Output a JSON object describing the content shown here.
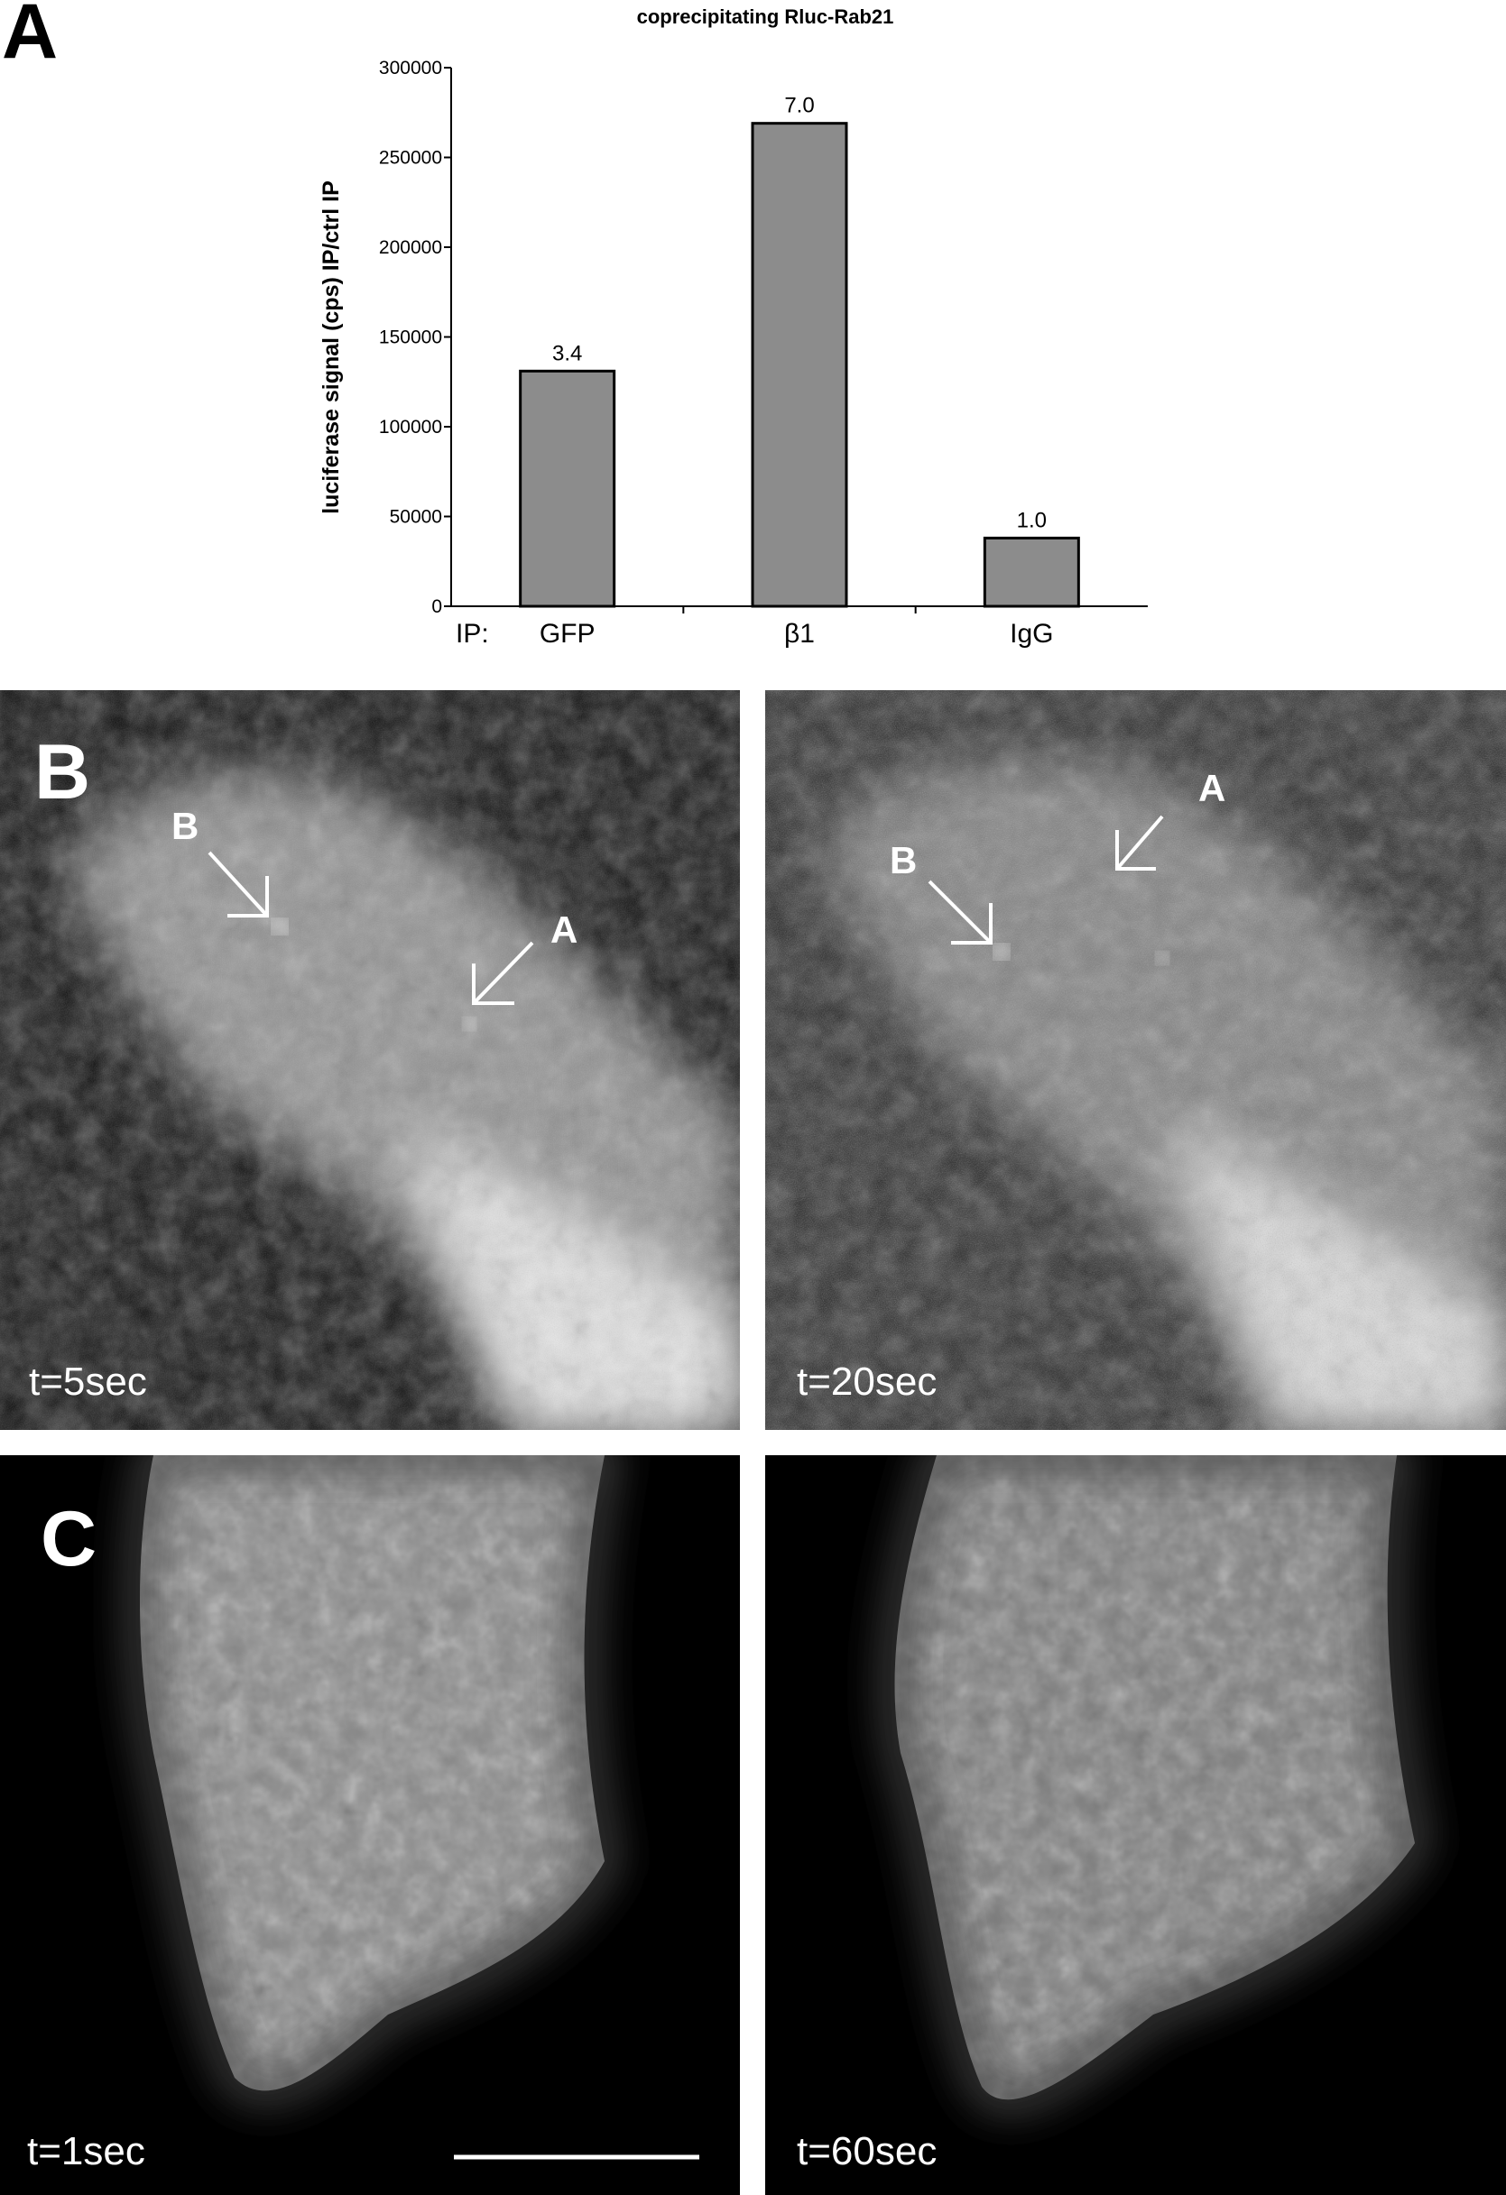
{
  "panel_labels": {
    "a": "A",
    "b": "B",
    "c": "C"
  },
  "chart_data": {
    "type": "bar",
    "title": "coprecipitating Rluc-Rab21",
    "ylabel": "luciferase signal (cps) IP/ctrl IP",
    "xlabel_prefix": "IP:",
    "categories": [
      "GFP",
      "β1",
      "IgG"
    ],
    "values": [
      131000,
      269000,
      38000
    ],
    "data_labels": [
      "3.4",
      "7.0",
      "1.0"
    ],
    "ylim": [
      0,
      300000
    ],
    "yticks": [
      0,
      50000,
      100000,
      150000,
      200000,
      250000,
      300000
    ],
    "ytick_labels": [
      "0",
      "50000",
      "100000",
      "150000",
      "200000",
      "250000",
      "300000"
    ],
    "bar_color": "#8c8c8c",
    "grid": false
  },
  "images": {
    "b_left": {
      "time": "t=5sec",
      "arrows": [
        "B",
        "A"
      ]
    },
    "b_right": {
      "time": "t=20sec",
      "arrows": [
        "B",
        "A"
      ]
    },
    "c_left": {
      "time": "t=1sec"
    },
    "c_right": {
      "time": "t=60sec"
    }
  }
}
